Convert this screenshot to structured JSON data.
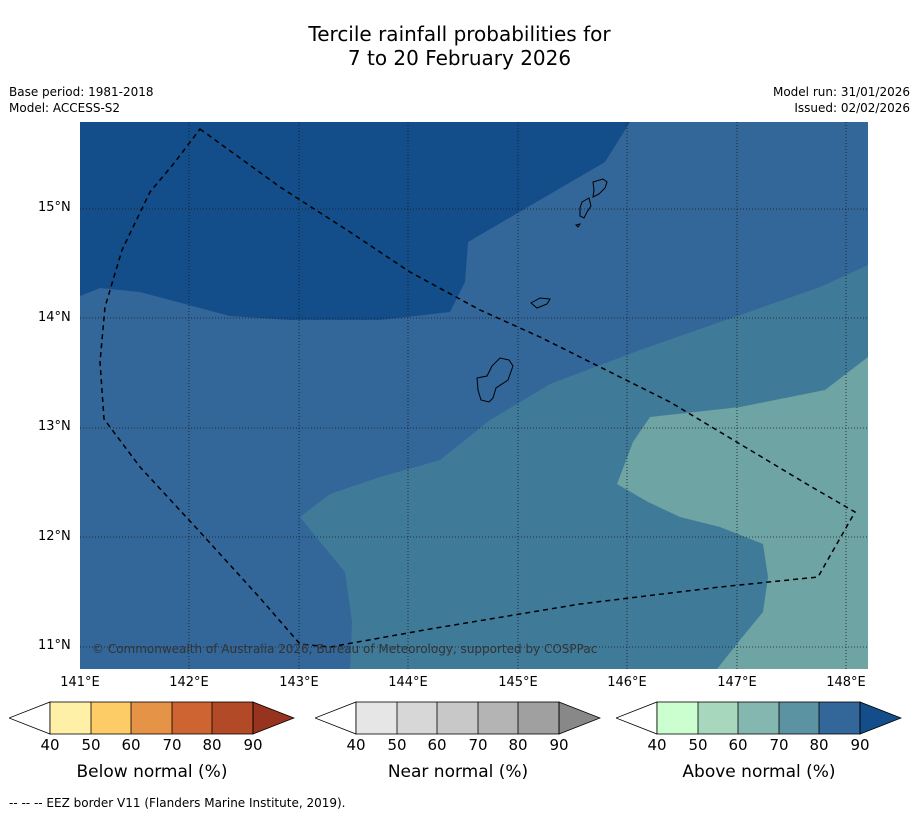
{
  "title": {
    "line1": "Tercile rainfall probabilities for",
    "line2": "7 to 20 February 2026"
  },
  "meta_left": {
    "base_period": "Base period: 1981-2018",
    "model": "Model: ACCESS-S2"
  },
  "meta_right": {
    "model_run": "Model run: 31/01/2026",
    "issued": "Issued: 02/02/2026"
  },
  "latitude_labels": [
    "15°N",
    "14°N",
    "13°N",
    "12°N",
    "11°N"
  ],
  "longitude_labels": [
    "141°E",
    "142°E",
    "143°E",
    "144°E",
    "145°E",
    "146°E",
    "147°E",
    "148°E"
  ],
  "copyright": "© Commonwealth of Australia 2026, Bureau of Meteorology, supported by COSPPac",
  "colorbars": [
    {
      "label": "Below normal (%)",
      "ticks": [
        "40",
        "50",
        "60",
        "70",
        "80",
        "90"
      ],
      "colors": [
        "#fff0a8",
        "#fdcc66",
        "#e59346",
        "#cf6433",
        "#b34a27",
        "#98331f"
      ]
    },
    {
      "label": "Near normal (%)",
      "ticks": [
        "40",
        "50",
        "60",
        "70",
        "80",
        "90"
      ],
      "colors": [
        "#e6e6e6",
        "#d7d7d7",
        "#c8c8c8",
        "#b4b4b4",
        "#a0a0a0",
        "#888888"
      ]
    },
    {
      "label": "Above normal (%)",
      "ticks": [
        "40",
        "50",
        "60",
        "70",
        "80",
        "90"
      ],
      "colors": [
        "#ccffd0",
        "#a7d7bd",
        "#84b7b0",
        "#5b93a3",
        "#336699",
        "#134d8a"
      ]
    }
  ],
  "map_colors": {
    "above_90": "#134d8a",
    "above_80": "#336699",
    "above_70": "#3f7a99",
    "above_60": "#6fa4a4"
  },
  "footnote": "--  --  -- EEZ border V11 (Flanders Marine Institute, 2019)."
}
